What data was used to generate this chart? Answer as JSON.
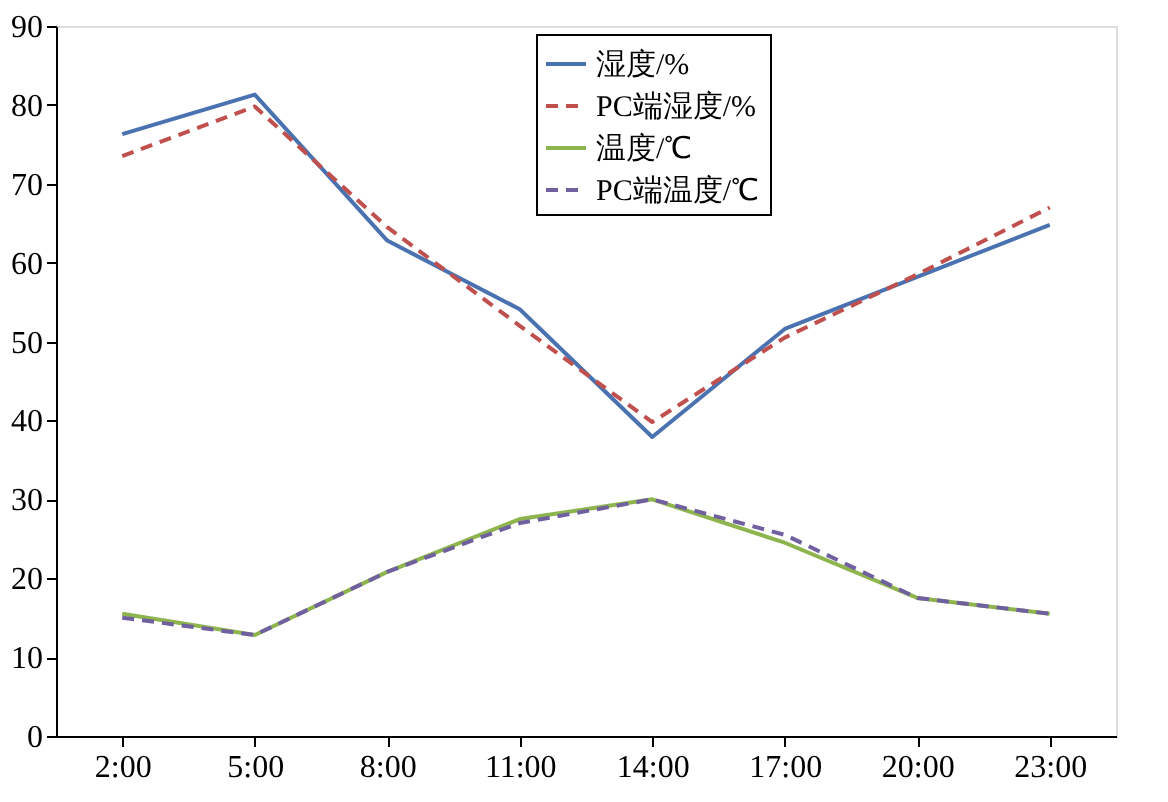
{
  "chart_data": {
    "type": "line",
    "x": [
      2,
      5,
      8,
      11,
      14,
      17,
      20,
      23
    ],
    "series": [
      {
        "name": "湿度/%",
        "color": "#4a72b0",
        "line_style": "solid",
        "values": [
          76.3,
          81.3,
          62.8,
          54.1,
          37.9,
          51.6,
          58.2,
          64.8
        ]
      },
      {
        "name": "PC端湿度/%",
        "color": "#c0504d",
        "line_style": "dashed",
        "values": [
          73.5,
          79.8,
          64.5,
          52,
          39.8,
          50.5,
          58.5,
          67
        ]
      },
      {
        "name": "温度/℃",
        "color": "#8db44d",
        "line_style": "solid",
        "values": [
          15.5,
          12.8,
          20.8,
          27.5,
          30,
          24.5,
          17.5,
          15.5
        ]
      },
      {
        "name": "PC端温度/℃",
        "color": "#7060a0",
        "line_style": "dashed",
        "values": [
          15,
          12.8,
          20.8,
          27,
          30,
          25.5,
          17.5,
          15.5
        ]
      }
    ],
    "xlim": [
      0.5,
      24.5
    ],
    "xticks": [
      {
        "value": 2,
        "label": "2:00"
      },
      {
        "value": 5,
        "label": "5:00"
      },
      {
        "value": 8,
        "label": "8:00"
      },
      {
        "value": 11,
        "label": "11:00"
      },
      {
        "value": 14,
        "label": "14:00"
      },
      {
        "value": 17,
        "label": "17:00"
      },
      {
        "value": 20,
        "label": "20:00"
      },
      {
        "value": 23,
        "label": "23:00"
      }
    ],
    "ylim": [
      0,
      90
    ],
    "yticks": [
      0,
      10,
      20,
      30,
      40,
      50,
      60,
      70,
      80,
      90
    ],
    "grid": false,
    "legend": "top right",
    "marker": "none"
  }
}
